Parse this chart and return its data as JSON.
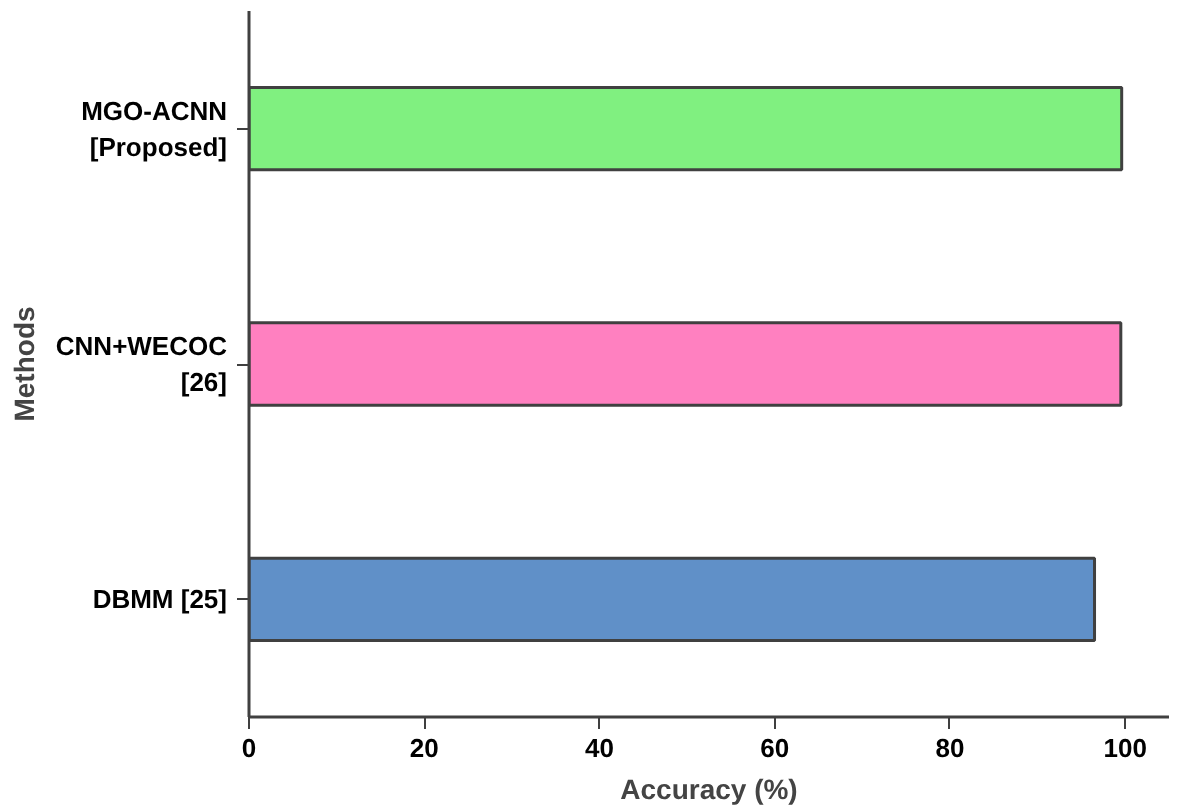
{
  "chart_data": {
    "type": "bar",
    "orientation": "horizontal",
    "xlabel": "Accuracy (%)",
    "ylabel": "Methods",
    "categories": [
      "MGO-ACNN\n[Proposed]",
      "CNN+WECOC\n[26]",
      "DBMM [25]"
    ],
    "values": [
      99.6,
      99.5,
      96.5
    ],
    "colors": [
      "#80f080",
      "#ff80c0",
      "#6090c8"
    ],
    "xlim": [
      0,
      105
    ],
    "xticks": [
      0,
      20,
      40,
      60,
      80,
      100
    ],
    "grid": false
  }
}
